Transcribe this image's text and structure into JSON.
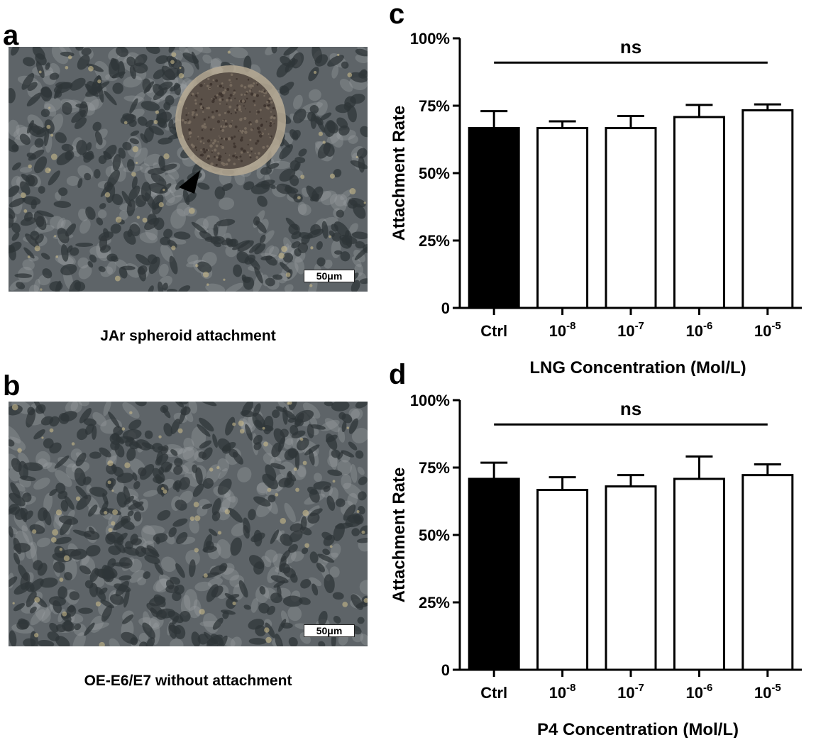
{
  "panels": {
    "a": {
      "letter": "a",
      "caption": "JAr spheroid attachment",
      "scale_bar": "50μm"
    },
    "b": {
      "letter": "b",
      "caption": "OE-E6/E7 without attachment",
      "scale_bar": "50μm"
    },
    "c": {
      "letter": "c"
    },
    "d": {
      "letter": "d"
    }
  },
  "colors": {
    "ctrl_bar": "#000000",
    "treatment_bar": "#ffffff",
    "micrograph_base": "#5e6468",
    "cell_dark": "#2f3538",
    "spheroid": "#5a5048"
  },
  "chart_data": [
    {
      "panel": "c",
      "type": "bar",
      "categories": [
        "Ctrl",
        "10-8",
        "10-7",
        "10-6",
        "10-5"
      ],
      "category_base": [
        "Ctrl",
        "10",
        "10",
        "10",
        "10"
      ],
      "category_exponent": [
        "",
        "-8",
        "-7",
        "-6",
        "-5"
      ],
      "values": [
        66.7,
        66.7,
        66.7,
        70.8,
        73.3
      ],
      "errors": [
        6.3,
        2.5,
        4.5,
        4.5,
        2.2
      ],
      "xlabel": "LNG Concentration (Mol/L)",
      "ylabel": "Attachment Rate",
      "ylim": [
        0,
        100
      ],
      "yticks": [
        0,
        25,
        50,
        75,
        100
      ],
      "ytick_labels": [
        "0",
        "25%",
        "50%",
        "75%",
        "100%"
      ],
      "annotation": "ns",
      "grid": false
    },
    {
      "panel": "d",
      "type": "bar",
      "categories": [
        "Ctrl",
        "10-8",
        "10-7",
        "10-6",
        "10-5"
      ],
      "category_base": [
        "Ctrl",
        "10",
        "10",
        "10",
        "10"
      ],
      "category_exponent": [
        "",
        "-8",
        "-7",
        "-6",
        "-5"
      ],
      "values": [
        70.8,
        66.7,
        68.0,
        70.8,
        72.2
      ],
      "errors": [
        6.0,
        4.7,
        4.2,
        8.3,
        4.0
      ],
      "xlabel": "P4 Concentration (Mol/L)",
      "ylabel": "Attachment Rate",
      "ylim": [
        0,
        100
      ],
      "yticks": [
        0,
        25,
        50,
        75,
        100
      ],
      "ytick_labels": [
        "0",
        "25%",
        "50%",
        "75%",
        "100%"
      ],
      "annotation": "ns",
      "grid": false
    }
  ]
}
